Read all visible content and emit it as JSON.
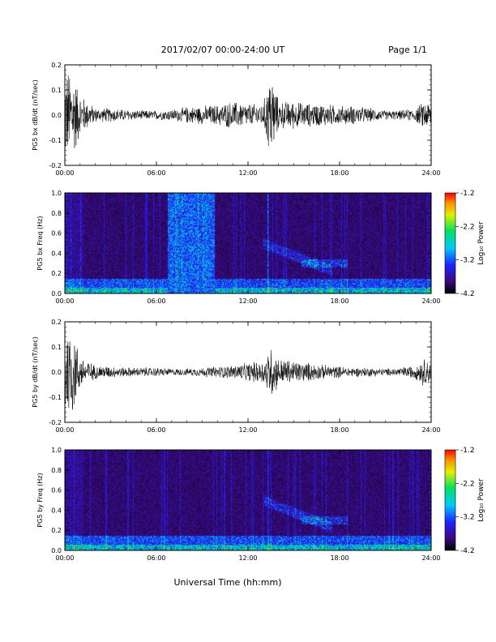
{
  "header": {
    "date_range": "2017/02/07  00:00-24:00 UT",
    "page": "Page 1/1"
  },
  "xlabel": "Universal Time (hh:mm)",
  "chart_data": [
    {
      "type": "line",
      "ylabel": "PG5 bx dB/dt (nT/sec)",
      "xlim": [
        0,
        24
      ],
      "ylim": [
        -0.2,
        0.2
      ],
      "xticks": [
        "00:00",
        "06:00",
        "12:00",
        "18:00",
        "24:00"
      ],
      "yticks": [
        "-0.2",
        "-0.1",
        "0.0",
        "0.1",
        "0.2"
      ],
      "envelope": {
        "hours": [
          0,
          0.5,
          1,
          2,
          3,
          4,
          5,
          6,
          7,
          8,
          9,
          10,
          11,
          12,
          13,
          13.5,
          14,
          15,
          16,
          17,
          18,
          19,
          20,
          21,
          22,
          23,
          23.5,
          24
        ],
        "amplitude": [
          0.2,
          0.2,
          0.09,
          0.03,
          0.03,
          0.025,
          0.02,
          0.02,
          0.025,
          0.035,
          0.04,
          0.045,
          0.06,
          0.05,
          0.05,
          0.2,
          0.06,
          0.06,
          0.05,
          0.05,
          0.04,
          0.04,
          0.03,
          0.02,
          0.02,
          0.03,
          0.06,
          0.06
        ]
      }
    },
    {
      "type": "heatmap",
      "ylabel": "PG5 bx Freq (Hz)",
      "xlim": [
        0,
        24
      ],
      "ylim": [
        0,
        1.0
      ],
      "xticks": [
        "00:00",
        "06:00",
        "12:00",
        "18:00",
        "24:00"
      ],
      "yticks": [
        "0.0",
        "0.2",
        "0.4",
        "0.6",
        "0.8",
        "1.0"
      ],
      "colorbar": {
        "label": "Log₁₀ Power",
        "range": [
          -4.2,
          -1.2
        ],
        "ticks": [
          "-1.2",
          "-2.2",
          "-3.2",
          "-4.2"
        ]
      },
      "features": {
        "bright_block_hours": [
          6.7,
          9.8
        ],
        "burst_line_hours": [
          13.3
        ]
      }
    },
    {
      "type": "line",
      "ylabel": "PG5 by dB/dt (nT/sec)",
      "xlim": [
        0,
        24
      ],
      "ylim": [
        -0.2,
        0.2
      ],
      "xticks": [
        "00:00",
        "06:00",
        "12:00",
        "18:00",
        "24:00"
      ],
      "yticks": [
        "-0.2",
        "-0.1",
        "0.0",
        "0.1",
        "0.2"
      ],
      "envelope": {
        "hours": [
          0,
          0.5,
          1,
          2,
          3,
          4,
          5,
          6,
          7,
          8,
          9,
          10,
          11,
          12,
          13,
          13.5,
          14,
          15,
          16,
          17,
          18,
          19,
          20,
          21,
          22,
          23,
          23.5,
          24
        ],
        "amplitude": [
          0.2,
          0.2,
          0.07,
          0.03,
          0.025,
          0.02,
          0.02,
          0.02,
          0.015,
          0.015,
          0.02,
          0.025,
          0.03,
          0.04,
          0.05,
          0.12,
          0.06,
          0.05,
          0.04,
          0.03,
          0.025,
          0.02,
          0.02,
          0.015,
          0.02,
          0.03,
          0.06,
          0.05
        ]
      }
    },
    {
      "type": "heatmap",
      "ylabel": "PG5 by Freq (Hz)",
      "xlim": [
        0,
        24
      ],
      "ylim": [
        0,
        1.0
      ],
      "xticks": [
        "00:00",
        "06:00",
        "12:00",
        "18:00",
        "24:00"
      ],
      "yticks": [
        "0.0",
        "0.2",
        "0.4",
        "0.6",
        "0.8",
        "1.0"
      ],
      "colorbar": {
        "label": "Log₁₀ Power",
        "range": [
          -4.2,
          -1.2
        ],
        "ticks": [
          "-1.2",
          "-2.2",
          "-3.2",
          "-4.2"
        ]
      },
      "features": {
        "burst_line_hours": [
          13.3
        ]
      }
    }
  ]
}
